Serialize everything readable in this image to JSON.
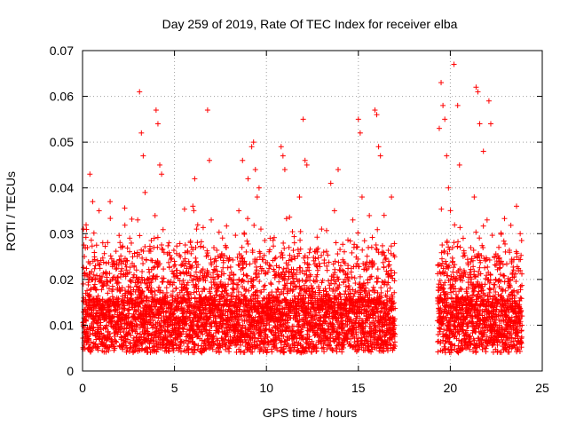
{
  "chart_data": {
    "type": "scatter",
    "title": "Day 259 of 2019, Rate Of TEC Index for receiver elba",
    "xlabel": "GPS time / hours",
    "ylabel": "ROTI / TECUs",
    "xlim": [
      0,
      25
    ],
    "ylim": [
      0,
      0.07
    ],
    "x_ticks": [
      0,
      5,
      10,
      15,
      20,
      25
    ],
    "y_ticks": [
      0,
      0.01,
      0.02,
      0.03,
      0.04,
      0.05,
      0.06,
      0.07
    ],
    "x_tick_labels": [
      "0",
      "5",
      "10",
      "15",
      "20",
      "25"
    ],
    "y_tick_labels": [
      "0",
      "0.01",
      "0.02",
      "0.03",
      "0.04",
      "0.05",
      "0.06",
      "0.07"
    ],
    "grid": true,
    "marker": "plus",
    "color": "#ff0000",
    "data_gap_hours": [
      17.0,
      19.3
    ],
    "series": [
      {
        "x": [
          0.05,
          0.1,
          0.2,
          0.25,
          0.35,
          0.4,
          0.55,
          0.6,
          0.7,
          0.9,
          1.0,
          1.1,
          1.3,
          1.5,
          1.7,
          1.9,
          2.1,
          2.4,
          2.6,
          2.8,
          3.0,
          3.1,
          3.2,
          3.3,
          3.4,
          3.5,
          3.7,
          3.9,
          4.0,
          4.1,
          4.2,
          4.3,
          4.5,
          4.7,
          4.9,
          5.1,
          5.3,
          5.5,
          5.8,
          6.0,
          6.1,
          6.2,
          6.4,
          6.6,
          6.8,
          6.9,
          7.0,
          7.2,
          7.5,
          7.8,
          8.0,
          8.2,
          8.5,
          8.7,
          8.9,
          9.0,
          9.2,
          9.3,
          9.4,
          9.5,
          9.6,
          9.7,
          9.8,
          10.0,
          10.2,
          10.5,
          10.8,
          10.9,
          11.0,
          11.2,
          11.5,
          11.8,
          12.0,
          12.1,
          12.2,
          12.4,
          12.6,
          12.8,
          13.0,
          13.2,
          13.5,
          13.7,
          13.9,
          14.1,
          14.3,
          14.5,
          14.7,
          14.9,
          15.0,
          15.1,
          15.2,
          15.3,
          15.5,
          15.7,
          15.9,
          16.0,
          16.1,
          16.2,
          16.3,
          16.4,
          16.5,
          16.6,
          16.8,
          16.9,
          19.3,
          19.4,
          19.5,
          19.6,
          19.7,
          19.8,
          19.9,
          20.0,
          20.2,
          20.4,
          20.5,
          20.7,
          20.9,
          21.1,
          21.3,
          21.4,
          21.5,
          21.6,
          21.8,
          22.0,
          22.1,
          22.2,
          22.4,
          22.6,
          22.8,
          23.0,
          23.2,
          23.4,
          23.6,
          23.8,
          23.9
        ],
        "y": [
          0.031,
          0.025,
          0.011,
          0.021,
          0.007,
          0.043,
          0.037,
          0.012,
          0.018,
          0.035,
          0.006,
          0.028,
          0.015,
          0.037,
          0.024,
          0.008,
          0.024,
          0.012,
          0.006,
          0.021,
          0.033,
          0.061,
          0.052,
          0.047,
          0.039,
          0.012,
          0.014,
          0.029,
          0.057,
          0.054,
          0.045,
          0.043,
          0.015,
          0.028,
          0.006,
          0.018,
          0.011,
          0.024,
          0.009,
          0.036,
          0.042,
          0.031,
          0.016,
          0.006,
          0.057,
          0.046,
          0.033,
          0.022,
          0.012,
          0.027,
          0.009,
          0.019,
          0.035,
          0.046,
          0.026,
          0.042,
          0.049,
          0.05,
          0.044,
          0.038,
          0.04,
          0.031,
          0.014,
          0.012,
          0.029,
          0.021,
          0.049,
          0.047,
          0.044,
          0.013,
          0.025,
          0.038,
          0.055,
          0.046,
          0.045,
          0.021,
          0.013,
          0.008,
          0.031,
          0.018,
          0.041,
          0.035,
          0.044,
          0.012,
          0.021,
          0.006,
          0.033,
          0.027,
          0.055,
          0.052,
          0.038,
          0.019,
          0.011,
          0.015,
          0.057,
          0.056,
          0.049,
          0.047,
          0.026,
          0.034,
          0.012,
          0.021,
          0.038,
          0.009,
          0.011,
          0.053,
          0.063,
          0.058,
          0.055,
          0.047,
          0.04,
          0.018,
          0.067,
          0.058,
          0.045,
          0.029,
          0.012,
          0.021,
          0.038,
          0.062,
          0.061,
          0.054,
          0.048,
          0.033,
          0.059,
          0.054,
          0.025,
          0.015,
          0.009,
          0.026,
          0.019,
          0.013,
          0.036,
          0.03,
          0.012
        ]
      }
    ]
  }
}
